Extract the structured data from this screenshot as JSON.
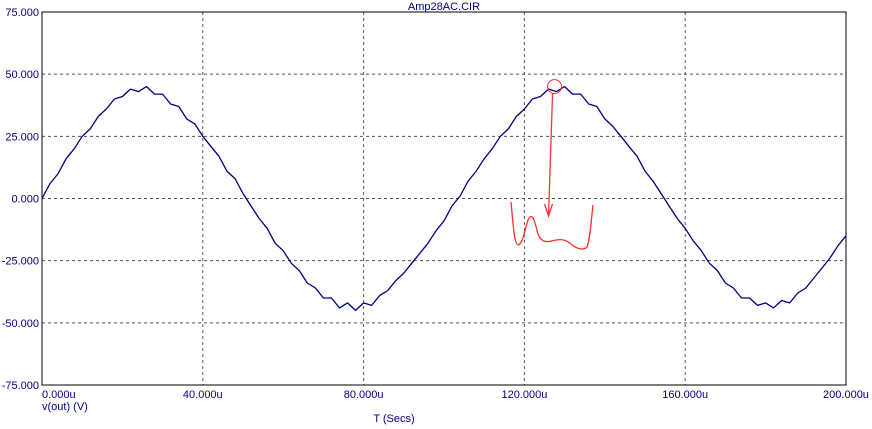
{
  "chart_data": {
    "type": "line",
    "title": "Amp28AC.CIR",
    "xlabel": "T (Secs)",
    "ylabel": "v(out) (V)",
    "xlim": [
      0,
      200
    ],
    "ylim": [
      -75,
      75
    ],
    "x_ticks": [
      "0.000u",
      "40.000u",
      "80.000u",
      "120.000u",
      "160.000u",
      "200.000u"
    ],
    "y_ticks": [
      "75.000",
      "50.000",
      "25.000",
      "0.000",
      "-25.000",
      "-50.000",
      "-75.000"
    ],
    "grid": true,
    "series": [
      {
        "color": "#000080",
        "x": [
          0,
          2,
          4,
          6,
          8,
          10,
          12,
          14,
          16,
          18,
          20,
          22,
          24,
          26,
          28,
          30,
          32,
          34,
          36,
          38,
          40,
          42,
          44,
          46,
          48,
          50,
          52,
          54,
          56,
          58,
          60,
          62,
          64,
          66,
          68,
          70,
          72,
          74,
          76,
          78,
          80,
          82,
          84,
          86,
          88,
          90,
          92,
          94,
          96,
          98,
          100,
          102,
          104,
          106,
          108,
          110,
          112,
          114,
          116,
          118,
          120,
          122,
          124,
          126,
          128,
          130,
          132,
          134,
          136,
          138,
          140,
          142,
          144,
          146,
          148,
          150,
          152,
          154,
          156,
          158,
          160,
          162,
          164,
          166,
          168,
          170,
          172,
          174,
          176,
          178,
          180,
          182,
          184,
          186,
          188,
          190,
          192,
          194,
          196,
          198,
          200
        ],
        "values": [
          0,
          6,
          10,
          16,
          20,
          25,
          28,
          33,
          36,
          40,
          41,
          44,
          43,
          45,
          42,
          42,
          38,
          37,
          32,
          30,
          25,
          21,
          17,
          11,
          8,
          2,
          -3,
          -8,
          -12,
          -18,
          -21,
          -26,
          -29,
          -34,
          -36,
          -40,
          -40,
          -44,
          -42,
          -45,
          -42,
          -43,
          -39,
          -37,
          -33,
          -30,
          -26,
          -22,
          -18,
          -13,
          -9,
          -3,
          1,
          7,
          11,
          16,
          20,
          25,
          28,
          33,
          36,
          40,
          41,
          44,
          43,
          45,
          42,
          42,
          38,
          37,
          32,
          29,
          25,
          21,
          17,
          11,
          7,
          2,
          -3,
          -8,
          -12,
          -17,
          -21,
          -26,
          -29,
          -34,
          -36,
          -40,
          -40,
          -43,
          -42,
          -44,
          -41,
          -42,
          -38,
          -36,
          -32,
          -28,
          -24,
          -19,
          -15
        ]
      }
    ],
    "annotations": [
      {
        "type": "zoom-callout",
        "color": "#ff3030",
        "circle_at": [
          127.5,
          45
        ],
        "arrow_to": [
          126,
          -7
        ]
      }
    ]
  }
}
